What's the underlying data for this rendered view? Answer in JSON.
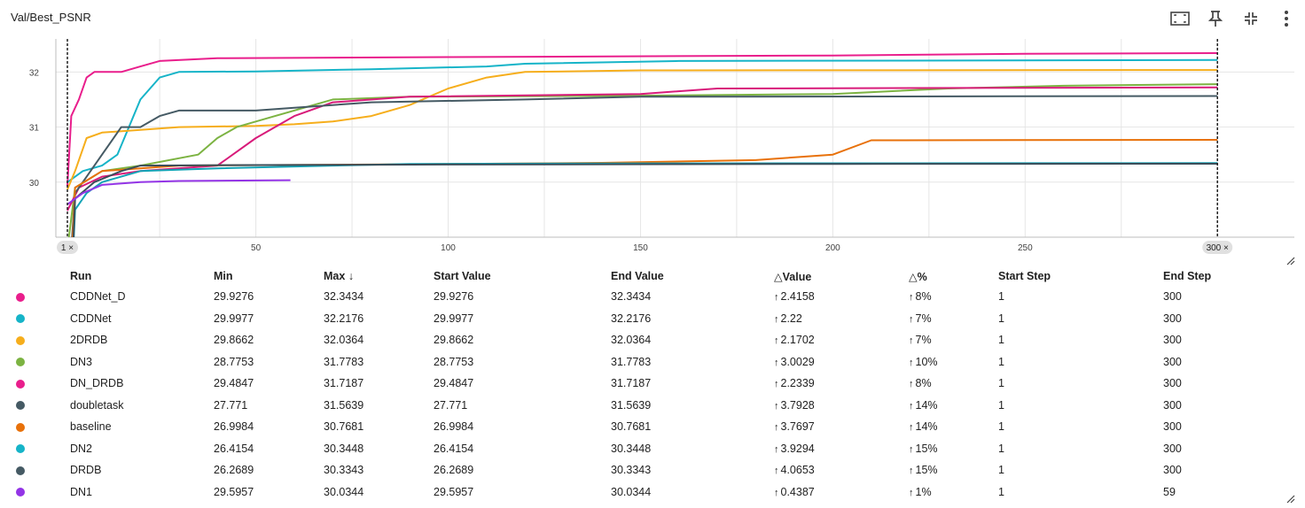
{
  "header": {
    "title": "Val/Best_PSNR",
    "icons": [
      "fit-domain-icon",
      "pin-icon",
      "collapse-icon",
      "more-vert-icon"
    ]
  },
  "chart_data": {
    "type": "line",
    "title": "",
    "xlabel": "",
    "ylabel": "",
    "xlim": [
      -2,
      320
    ],
    "ylim": [
      29,
      32.6
    ],
    "x_ticks": [
      "50",
      "100",
      "150",
      "200",
      "250"
    ],
    "y_ticks": [
      "30",
      "31",
      "32"
    ],
    "grid": true,
    "selected_steps": [
      {
        "label": "1 ×",
        "step": 1
      },
      {
        "label": "300 ×",
        "step": 300
      }
    ],
    "series": [
      {
        "name": "CDDNet_D",
        "color": "#e91e8c",
        "points": [
          [
            1,
            29.93
          ],
          [
            2,
            31.2
          ],
          [
            4,
            31.5
          ],
          [
            6,
            31.9
          ],
          [
            8,
            32.0
          ],
          [
            15,
            32.0
          ],
          [
            20,
            32.1
          ],
          [
            25,
            32.2
          ],
          [
            40,
            32.25
          ],
          [
            100,
            32.27
          ],
          [
            200,
            32.3
          ],
          [
            250,
            32.33
          ],
          [
            300,
            32.3434
          ]
        ]
      },
      {
        "name": "CDDNet",
        "color": "#16b4c8",
        "points": [
          [
            1,
            29.9977
          ],
          [
            5,
            30.2
          ],
          [
            10,
            30.3
          ],
          [
            14,
            30.5
          ],
          [
            17,
            31.0
          ],
          [
            20,
            31.5
          ],
          [
            25,
            31.9
          ],
          [
            30,
            32.0
          ],
          [
            50,
            32.01
          ],
          [
            80,
            32.05
          ],
          [
            110,
            32.1
          ],
          [
            120,
            32.15
          ],
          [
            160,
            32.2
          ],
          [
            300,
            32.2176
          ]
        ]
      },
      {
        "name": "2DRDB",
        "color": "#f6ae1c",
        "points": [
          [
            1,
            29.8662
          ],
          [
            3,
            30.2
          ],
          [
            6,
            30.8
          ],
          [
            10,
            30.9
          ],
          [
            20,
            30.95
          ],
          [
            30,
            31.0
          ],
          [
            50,
            31.02
          ],
          [
            60,
            31.05
          ],
          [
            70,
            31.1
          ],
          [
            80,
            31.2
          ],
          [
            90,
            31.4
          ],
          [
            100,
            31.7
          ],
          [
            110,
            31.9
          ],
          [
            120,
            32.0
          ],
          [
            150,
            32.03
          ],
          [
            300,
            32.0364
          ]
        ]
      },
      {
        "name": "DN3",
        "color": "#7cb342",
        "points": [
          [
            1,
            28.78
          ],
          [
            3,
            29.9
          ],
          [
            10,
            30.2
          ],
          [
            20,
            30.3
          ],
          [
            35,
            30.5
          ],
          [
            40,
            30.8
          ],
          [
            45,
            31.0
          ],
          [
            55,
            31.2
          ],
          [
            70,
            31.5
          ],
          [
            90,
            31.55
          ],
          [
            150,
            31.57
          ],
          [
            200,
            31.6
          ],
          [
            230,
            31.7
          ],
          [
            260,
            31.75
          ],
          [
            300,
            31.7783
          ]
        ]
      },
      {
        "name": "DN_DRDB",
        "color": "#d81b7a",
        "points": [
          [
            1,
            29.48
          ],
          [
            4,
            29.9
          ],
          [
            10,
            30.1
          ],
          [
            20,
            30.2
          ],
          [
            40,
            30.3
          ],
          [
            50,
            30.8
          ],
          [
            60,
            31.2
          ],
          [
            70,
            31.45
          ],
          [
            90,
            31.55
          ],
          [
            150,
            31.6
          ],
          [
            170,
            31.7
          ],
          [
            300,
            31.7187
          ]
        ]
      },
      {
        "name": "doubletask",
        "color": "#455a64",
        "points": [
          [
            1,
            27.77
          ],
          [
            3,
            29.8
          ],
          [
            5,
            30.0
          ],
          [
            10,
            30.5
          ],
          [
            15,
            31.0
          ],
          [
            20,
            31.0
          ],
          [
            25,
            31.2
          ],
          [
            30,
            31.3
          ],
          [
            50,
            31.3
          ],
          [
            60,
            31.35
          ],
          [
            80,
            31.45
          ],
          [
            120,
            31.5
          ],
          [
            150,
            31.55
          ],
          [
            300,
            31.5639
          ]
        ]
      },
      {
        "name": "baseline",
        "color": "#e8710a",
        "points": [
          [
            1,
            27.0
          ],
          [
            3,
            29.9
          ],
          [
            10,
            30.2
          ],
          [
            30,
            30.3
          ],
          [
            80,
            30.32
          ],
          [
            140,
            30.35
          ],
          [
            180,
            30.4
          ],
          [
            200,
            30.5
          ],
          [
            210,
            30.76
          ],
          [
            300,
            30.7681
          ]
        ]
      },
      {
        "name": "DN2",
        "color": "#12a4b6",
        "points": [
          [
            1,
            26.42
          ],
          [
            3,
            29.5
          ],
          [
            6,
            29.8
          ],
          [
            10,
            30.0
          ],
          [
            20,
            30.2
          ],
          [
            40,
            30.25
          ],
          [
            70,
            30.3
          ],
          [
            90,
            30.33
          ],
          [
            150,
            30.34
          ],
          [
            300,
            30.3448
          ]
        ]
      },
      {
        "name": "DRDB",
        "color": "#3b4d59",
        "points": [
          [
            1,
            26.27
          ],
          [
            3,
            29.7
          ],
          [
            8,
            30.0
          ],
          [
            15,
            30.2
          ],
          [
            20,
            30.3
          ],
          [
            50,
            30.31
          ],
          [
            100,
            30.32
          ],
          [
            200,
            30.33
          ],
          [
            300,
            30.3343
          ]
        ]
      },
      {
        "name": "DN1",
        "color": "#9334e6",
        "points": [
          [
            1,
            29.5957
          ],
          [
            5,
            29.8
          ],
          [
            10,
            29.95
          ],
          [
            20,
            30.0
          ],
          [
            30,
            30.02
          ],
          [
            59,
            30.0344
          ]
        ]
      }
    ]
  },
  "table": {
    "headers": [
      "Run",
      "Min",
      "Max",
      "Start Value",
      "End Value",
      "Value",
      "%",
      "Start Step",
      "End Step"
    ],
    "sort_arrow": "↓",
    "delta_symbol": "△",
    "up_arrow": "↑",
    "rows": [
      {
        "color": "#e91e8c",
        "run": "CDDNet_D",
        "min": "29.9276",
        "max": "32.3434",
        "start": "29.9276",
        "end": "32.3434",
        "dv": "2.4158",
        "dp": "8%",
        "ss": "1",
        "es": "300"
      },
      {
        "color": "#16b4c8",
        "run": "CDDNet",
        "min": "29.9977",
        "max": "32.2176",
        "start": "29.9977",
        "end": "32.2176",
        "dv": "2.22",
        "dp": "7%",
        "ss": "1",
        "es": "300"
      },
      {
        "color": "#f6ae1c",
        "run": "2DRDB",
        "min": "29.8662",
        "max": "32.0364",
        "start": "29.8662",
        "end": "32.0364",
        "dv": "2.1702",
        "dp": "7%",
        "ss": "1",
        "es": "300"
      },
      {
        "color": "#7cb342",
        "run": "DN3",
        "min": "28.7753",
        "max": "31.7783",
        "start": "28.7753",
        "end": "31.7783",
        "dv": "3.0029",
        "dp": "10%",
        "ss": "1",
        "es": "300"
      },
      {
        "color": "#e91e8c",
        "run": "DN_DRDB",
        "min": "29.4847",
        "max": "31.7187",
        "start": "29.4847",
        "end": "31.7187",
        "dv": "2.2339",
        "dp": "8%",
        "ss": "1",
        "es": "300"
      },
      {
        "color": "#455a64",
        "run": "doubletask",
        "min": "27.771",
        "max": "31.5639",
        "start": "27.771",
        "end": "31.5639",
        "dv": "3.7928",
        "dp": "14%",
        "ss": "1",
        "es": "300"
      },
      {
        "color": "#e8710a",
        "run": "baseline",
        "min": "26.9984",
        "max": "30.7681",
        "start": "26.9984",
        "end": "30.7681",
        "dv": "3.7697",
        "dp": "14%",
        "ss": "1",
        "es": "300"
      },
      {
        "color": "#16b4c8",
        "run": "DN2",
        "min": "26.4154",
        "max": "30.3448",
        "start": "26.4154",
        "end": "30.3448",
        "dv": "3.9294",
        "dp": "15%",
        "ss": "1",
        "es": "300"
      },
      {
        "color": "#455a64",
        "run": "DRDB",
        "min": "26.2689",
        "max": "30.3343",
        "start": "26.2689",
        "end": "30.3343",
        "dv": "4.0653",
        "dp": "15%",
        "ss": "1",
        "es": "300"
      },
      {
        "color": "#9334e6",
        "run": "DN1",
        "min": "29.5957",
        "max": "30.0344",
        "start": "29.5957",
        "end": "30.0344",
        "dv": "0.4387",
        "dp": "1%",
        "ss": "1",
        "es": "59"
      }
    ]
  }
}
